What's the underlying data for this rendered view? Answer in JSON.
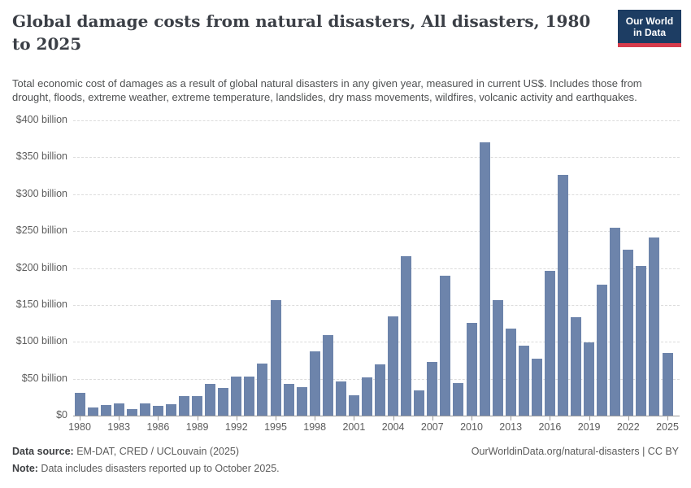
{
  "header": {
    "title": "Global damage costs from natural disasters, All disasters, 1980 to 2025",
    "logo": {
      "line1": "Our World",
      "line2": "in Data"
    }
  },
  "subtitle": "Total economic cost of damages as a result of global natural disasters in any given year, measured in current US$. Includes those from drought, floods, extreme weather, extreme temperature, landslides, dry mass movements, wildfires, volcanic activity and earthquakes.",
  "chart_data": {
    "type": "bar",
    "title": "Global damage costs from natural disasters, All disasters, 1980 to 2025",
    "unit": "current US$ (billions)",
    "grid": true,
    "ylim": [
      0,
      400
    ],
    "bar_color": "#6d84ab",
    "x": [
      1980,
      1981,
      1982,
      1983,
      1984,
      1985,
      1986,
      1987,
      1988,
      1989,
      1990,
      1991,
      1992,
      1993,
      1994,
      1995,
      1996,
      1997,
      1998,
      1999,
      2000,
      2001,
      2002,
      2003,
      2004,
      2005,
      2006,
      2007,
      2008,
      2009,
      2010,
      2011,
      2012,
      2013,
      2014,
      2015,
      2016,
      2017,
      2018,
      2019,
      2020,
      2021,
      2022,
      2023,
      2024,
      2025
    ],
    "values": [
      31,
      11,
      14,
      17,
      9,
      17,
      13,
      15,
      26,
      26,
      43,
      38,
      53,
      53,
      71,
      156,
      43,
      39,
      87,
      109,
      46,
      28,
      52,
      69,
      134,
      216,
      34,
      73,
      190,
      44,
      126,
      370,
      157,
      118,
      95,
      77,
      196,
      326,
      133,
      99,
      177,
      255,
      225,
      203,
      241,
      85
    ],
    "y_ticks": [
      {
        "value": 0,
        "label": "$0"
      },
      {
        "value": 50,
        "label": "$50 billion"
      },
      {
        "value": 100,
        "label": "$100 billion"
      },
      {
        "value": 150,
        "label": "$150 billion"
      },
      {
        "value": 200,
        "label": "$200 billion"
      },
      {
        "value": 250,
        "label": "$250 billion"
      },
      {
        "value": 300,
        "label": "$300 billion"
      },
      {
        "value": 350,
        "label": "$350 billion"
      },
      {
        "value": 400,
        "label": "$400 billion"
      }
    ],
    "x_tick_years": [
      1980,
      1983,
      1986,
      1989,
      1992,
      1995,
      1998,
      2001,
      2004,
      2007,
      2010,
      2013,
      2016,
      2019,
      2022,
      2025
    ]
  },
  "footer": {
    "source_label": "Data source:",
    "source_text": " EM-DAT, CRED / UCLouvain (2025)",
    "note_label": "Note:",
    "note_text": " Data includes disasters reported up to October 2025.",
    "link": "OurWorldinData.org/natural-disasters | CC BY"
  }
}
